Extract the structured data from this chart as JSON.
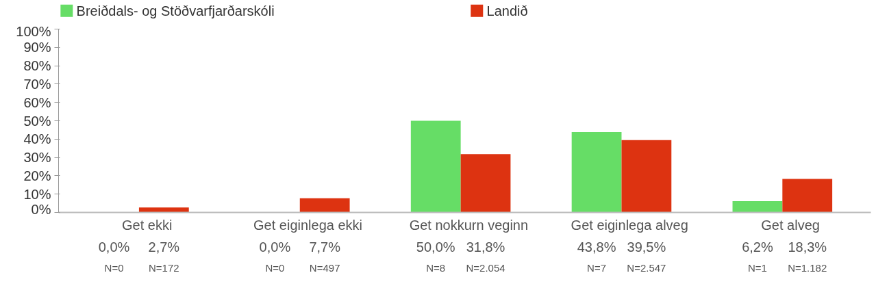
{
  "chart_data": {
    "type": "bar",
    "categories": [
      "Get ekki",
      "Get eiginlega ekki",
      "Get nokkurn veginn",
      "Get eiginlega alveg",
      "Get alveg"
    ],
    "series": [
      {
        "name": "Breiðdals- og Stöðvarfjarðarskóli",
        "color": "#66dd66",
        "values": [
          0.0,
          0.0,
          50.0,
          43.8,
          6.2
        ],
        "value_labels": [
          "0,0%",
          "0,0%",
          "50,0%",
          "43,8%",
          "6,2%"
        ]
      },
      {
        "name": "Landið",
        "color": "#dd3311",
        "values": [
          2.7,
          7.7,
          31.8,
          39.5,
          18.3
        ],
        "value_labels": [
          "2,7%",
          "7,7%",
          "31,8%",
          "39,5%",
          "18,3%"
        ]
      }
    ],
    "annotations": [
      "N=0",
      "N=172",
      "N=0",
      "N=497",
      "N=8",
      "N=2.054",
      "N=7",
      "N=2.547",
      "N=1",
      "N=1.182"
    ],
    "ylim": [
      0,
      100
    ],
    "yticks": [
      {
        "value": 0,
        "label": "0%"
      },
      {
        "value": 10,
        "label": "10%"
      },
      {
        "value": 20,
        "label": "20%"
      },
      {
        "value": 30,
        "label": "30%"
      },
      {
        "value": 40,
        "label": "40%"
      },
      {
        "value": 50,
        "label": "50%"
      },
      {
        "value": 60,
        "label": "60%"
      },
      {
        "value": 70,
        "label": "70%"
      },
      {
        "value": 80,
        "label": "80%"
      },
      {
        "value": 90,
        "label": "90%"
      },
      {
        "value": 100,
        "label": "100%"
      }
    ],
    "grid": false,
    "legend": "top"
  }
}
